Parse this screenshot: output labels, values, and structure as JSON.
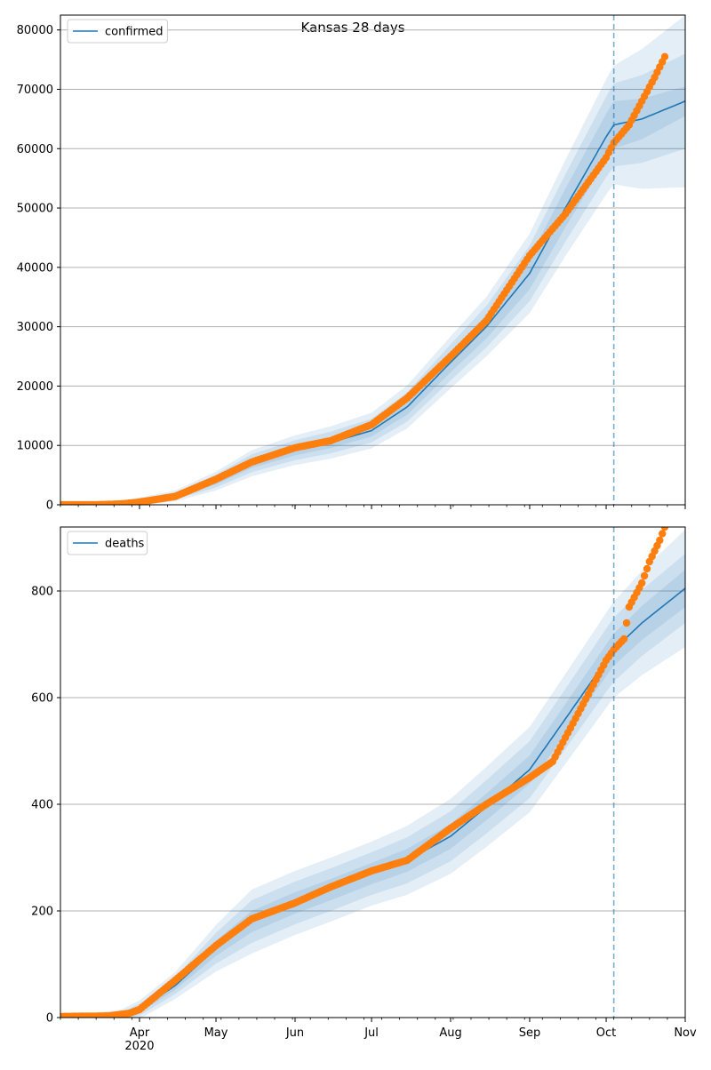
{
  "figure": {
    "title": "Kansas 28 days",
    "forecast_start": "2020-10-04",
    "x_axis": {
      "range": [
        "2020-03-01",
        "2020-11-01"
      ],
      "tick_labels": [
        "Apr\n2020",
        "May",
        "Jun",
        "Jul",
        "Aug",
        "Sep",
        "Oct",
        "Nov"
      ]
    }
  },
  "colors": {
    "model": "#1f77b4",
    "observed": "#ff7f0e",
    "band": "#1f77b4",
    "grid": "#b0b0b0"
  },
  "chart_data": [
    {
      "type": "line",
      "legend": "confirmed",
      "legend_position": "top-left",
      "ylim": [
        0,
        82500
      ],
      "yticks": [
        0,
        10000,
        20000,
        30000,
        40000,
        50000,
        60000,
        70000,
        80000
      ],
      "grid": "horizontal",
      "model_median": [
        [
          "2020-03-01",
          0
        ],
        [
          "2020-03-25",
          250
        ],
        [
          "2020-04-01",
          600
        ],
        [
          "2020-04-15",
          1500
        ],
        [
          "2020-05-01",
          4000
        ],
        [
          "2020-05-15",
          7000
        ],
        [
          "2020-06-01",
          9200
        ],
        [
          "2020-06-15",
          10500
        ],
        [
          "2020-07-01",
          12500
        ],
        [
          "2020-07-15",
          16500
        ],
        [
          "2020-08-01",
          24000
        ],
        [
          "2020-08-15",
          30000
        ],
        [
          "2020-09-01",
          39000
        ],
        [
          "2020-09-15",
          50000
        ],
        [
          "2020-10-01",
          62000
        ],
        [
          "2020-10-04",
          64000
        ],
        [
          "2020-10-15",
          65000
        ],
        [
          "2020-11-01",
          68000
        ]
      ],
      "bands_halfwidth": [
        [
          [
            "2020-03-01",
            0
          ],
          [
            "2020-04-15",
            300
          ],
          [
            "2020-05-15",
            800
          ],
          [
            "2020-07-01",
            1000
          ],
          [
            "2020-08-15",
            2000
          ],
          [
            "2020-10-04",
            4000
          ],
          [
            "2020-11-01",
            2500
          ]
        ],
        [
          [
            "2020-03-01",
            0
          ],
          [
            "2020-04-15",
            600
          ],
          [
            "2020-05-15",
            1500
          ],
          [
            "2020-07-01",
            2000
          ],
          [
            "2020-08-15",
            3500
          ],
          [
            "2020-10-04",
            7000
          ],
          [
            "2020-11-01",
            8000
          ]
        ],
        [
          [
            "2020-03-01",
            0
          ],
          [
            "2020-04-15",
            900
          ],
          [
            "2020-05-15",
            2200
          ],
          [
            "2020-07-01",
            3000
          ],
          [
            "2020-08-15",
            5000
          ],
          [
            "2020-10-04",
            10000
          ],
          [
            "2020-11-01",
            14500
          ]
        ]
      ],
      "observed": [
        [
          "2020-03-01",
          0
        ],
        [
          "2020-03-15",
          10
        ],
        [
          "2020-03-25",
          150
        ],
        [
          "2020-04-01",
          450
        ],
        [
          "2020-04-15",
          1400
        ],
        [
          "2020-05-01",
          4300
        ],
        [
          "2020-05-15",
          7200
        ],
        [
          "2020-06-01",
          9600
        ],
        [
          "2020-06-15",
          10800
        ],
        [
          "2020-07-01",
          13500
        ],
        [
          "2020-07-15",
          18000
        ],
        [
          "2020-08-01",
          25000
        ],
        [
          "2020-08-15",
          31000
        ],
        [
          "2020-09-01",
          42000
        ],
        [
          "2020-09-15",
          49000
        ],
        [
          "2020-10-01",
          58500
        ],
        [
          "2020-10-04",
          61000
        ],
        [
          "2020-10-10",
          64000
        ],
        [
          "2020-10-15",
          68000
        ],
        [
          "2020-10-20",
          72000
        ],
        [
          "2020-10-24",
          75500
        ]
      ]
    },
    {
      "type": "line",
      "legend": "deaths",
      "legend_position": "top-left",
      "ylim": [
        0,
        920
      ],
      "yticks": [
        0,
        200,
        400,
        600,
        800
      ],
      "grid": "horizontal",
      "model_median": [
        [
          "2020-03-01",
          0
        ],
        [
          "2020-03-25",
          2
        ],
        [
          "2020-04-01",
          15
        ],
        [
          "2020-04-15",
          60
        ],
        [
          "2020-05-01",
          130
        ],
        [
          "2020-05-15",
          180
        ],
        [
          "2020-06-01",
          215
        ],
        [
          "2020-06-15",
          240
        ],
        [
          "2020-07-01",
          270
        ],
        [
          "2020-07-15",
          295
        ],
        [
          "2020-08-01",
          340
        ],
        [
          "2020-08-15",
          395
        ],
        [
          "2020-09-01",
          465
        ],
        [
          "2020-09-15",
          560
        ],
        [
          "2020-10-01",
          670
        ],
        [
          "2020-10-04",
          690
        ],
        [
          "2020-10-15",
          740
        ],
        [
          "2020-11-01",
          805
        ]
      ],
      "bands_halfwidth": [
        [
          [
            "2020-03-01",
            0
          ],
          [
            "2020-04-15",
            8
          ],
          [
            "2020-05-15",
            20
          ],
          [
            "2020-07-01",
            20
          ],
          [
            "2020-08-15",
            25
          ],
          [
            "2020-10-04",
            30
          ],
          [
            "2020-11-01",
            35
          ]
        ],
        [
          [
            "2020-03-01",
            0
          ],
          [
            "2020-04-15",
            16
          ],
          [
            "2020-05-15",
            40
          ],
          [
            "2020-07-01",
            40
          ],
          [
            "2020-08-15",
            50
          ],
          [
            "2020-10-04",
            60
          ],
          [
            "2020-11-01",
            65
          ]
        ],
        [
          [
            "2020-03-01",
            0
          ],
          [
            "2020-04-15",
            25
          ],
          [
            "2020-05-15",
            60
          ],
          [
            "2020-07-01",
            60
          ],
          [
            "2020-08-15",
            75
          ],
          [
            "2020-10-04",
            90
          ],
          [
            "2020-11-01",
            110
          ]
        ]
      ],
      "observed": [
        [
          "2020-03-01",
          2
        ],
        [
          "2020-03-20",
          3
        ],
        [
          "2020-03-28",
          8
        ],
        [
          "2020-04-01",
          15
        ],
        [
          "2020-04-15",
          70
        ],
        [
          "2020-05-01",
          135
        ],
        [
          "2020-05-15",
          185
        ],
        [
          "2020-06-01",
          215
        ],
        [
          "2020-06-15",
          245
        ],
        [
          "2020-07-01",
          275
        ],
        [
          "2020-07-15",
          295
        ],
        [
          "2020-08-01",
          355
        ],
        [
          "2020-08-15",
          400
        ],
        [
          "2020-09-01",
          450
        ],
        [
          "2020-09-10",
          480
        ],
        [
          "2020-09-20",
          570
        ],
        [
          "2020-10-01",
          670
        ],
        [
          "2020-10-04",
          690
        ],
        [
          "2020-10-08",
          710
        ],
        [
          "2020-10-10",
          770
        ],
        [
          "2020-10-15",
          815
        ],
        [
          "2020-10-18",
          855
        ],
        [
          "2020-10-22",
          895
        ],
        [
          "2020-10-24",
          920
        ]
      ]
    }
  ]
}
